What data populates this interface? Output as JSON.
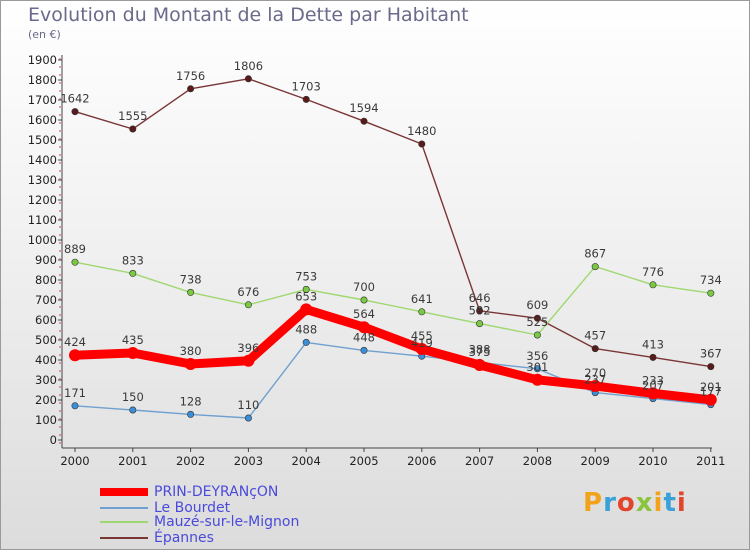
{
  "header": {
    "title": "Evolution du Montant de la Dette par Habitant",
    "subtitle": "(en €)"
  },
  "logo": {
    "text": "Proxiti",
    "colors": [
      "#f2a31b",
      "#3aa0d8",
      "#e2452b",
      "#8ac43f",
      "#f2a31b",
      "#3aa0d8",
      "#e2452b"
    ]
  },
  "chart_data": {
    "type": "line",
    "x": [
      "2000",
      "2001",
      "2002",
      "2003",
      "2004",
      "2005",
      "2006",
      "2007",
      "2008",
      "2009",
      "2010",
      "2011"
    ],
    "ylim": [
      0,
      1900
    ],
    "yticks": [
      0,
      100,
      200,
      300,
      400,
      500,
      600,
      700,
      800,
      900,
      1000,
      1100,
      1200,
      1300,
      1400,
      1500,
      1600,
      1700,
      1800,
      1900
    ],
    "grid": false,
    "legend_position": "bottom-left",
    "series": [
      {
        "name": "PRIN-DEYRANçON",
        "color": "#ff0000",
        "values": [
          424,
          435,
          380,
          396,
          653,
          564,
          455,
          375,
          301,
          270,
          233,
          201
        ],
        "labels": [
          "424",
          "435",
          "380",
          "396",
          "653",
          "564",
          "455",
          "375",
          "301",
          "270",
          "233",
          "201"
        ],
        "thick": true
      },
      {
        "name": "Le Bourdet",
        "color": "#6fa0d0",
        "dot_color": "#3a8fd8",
        "values": [
          171,
          150,
          128,
          110,
          488,
          448,
          419,
          388,
          356,
          237,
          207,
          177
        ],
        "labels": [
          "171",
          "150",
          "128",
          "110",
          "488",
          "448",
          "419",
          "388",
          "356",
          "237",
          "207",
          "177"
        ]
      },
      {
        "name": "Mauzé-sur-le-Mignon",
        "color": "#9fd870",
        "dot_color": "#7ac943",
        "values": [
          889,
          833,
          738,
          676,
          753,
          700,
          641,
          582,
          525,
          867,
          776,
          734
        ],
        "labels": [
          "889",
          "833",
          "738",
          "676",
          "753",
          "700",
          "641",
          "582",
          "525",
          "867",
          "776",
          "734"
        ]
      },
      {
        "name": "Épannes",
        "color": "#7a3535",
        "dot_color": "#5a1a1a",
        "values": [
          1642,
          1555,
          1756,
          1806,
          1703,
          1594,
          1480,
          646,
          609,
          457,
          413,
          367
        ],
        "labels": [
          "1642",
          "1555",
          "1756",
          "1806",
          "1703",
          "1594",
          "1480",
          "646",
          "609",
          "457",
          "413",
          "367"
        ]
      }
    ]
  }
}
